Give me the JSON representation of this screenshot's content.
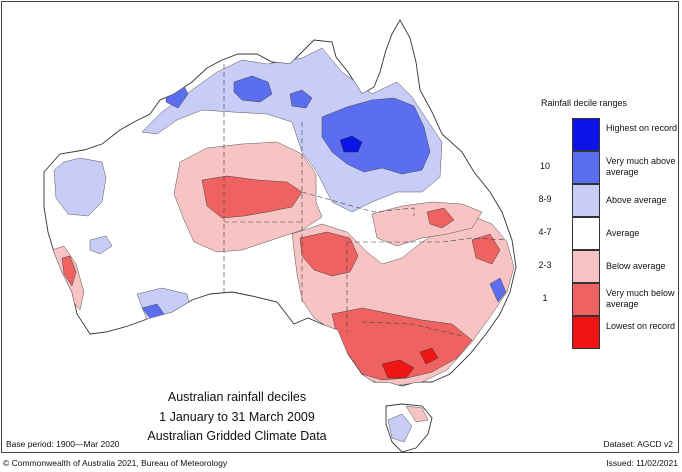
{
  "map": {
    "title_line1": "Australian rainfall deciles",
    "title_line2": "1 January to 31 March 2009",
    "title_line3": "Australian Gridded Climate Data"
  },
  "legend": {
    "title": "Rainfall decile ranges",
    "items": [
      {
        "label": "Highest on record",
        "decile": "",
        "color": "#0a14e6"
      },
      {
        "label": "Very much above average",
        "decile": "10",
        "color": "#5c6ef0"
      },
      {
        "label": "Above average",
        "decile": "8-9",
        "color": "#c8cdf7"
      },
      {
        "label": "Average",
        "decile": "4-7",
        "color": "#ffffff"
      },
      {
        "label": "Below average",
        "decile": "2-3",
        "color": "#f7c3c3"
      },
      {
        "label": "Very much below average",
        "decile": "1",
        "color": "#ee6262"
      },
      {
        "label": "Lowest on record",
        "decile": "",
        "color": "#f01515"
      }
    ]
  },
  "footer": {
    "base_period": "Base period: 1900—Mar 2020",
    "dataset": "Dataset: AGCD v2",
    "copyright": "© Commonwealth of Australia 2021, Bureau of Meteorology",
    "issued": "Issued: 11/02/2021"
  },
  "colors": {
    "highest": "#0a14e6",
    "very_much_above": "#5c6ef0",
    "above": "#c8cdf7",
    "average": "#ffffff",
    "below": "#f7c3c3",
    "very_much_below": "#ee6262",
    "lowest": "#f01515"
  }
}
